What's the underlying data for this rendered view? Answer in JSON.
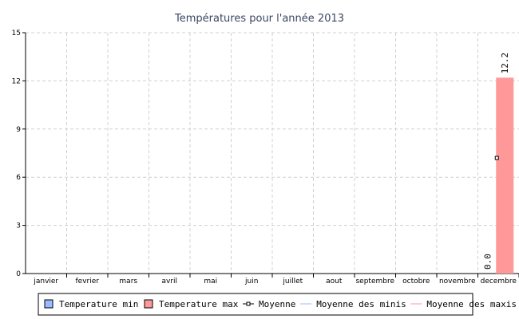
{
  "chart_data": {
    "type": "bar",
    "title": "Températures pour l'année 2013",
    "categories": [
      "janvier",
      "fevrier",
      "mars",
      "avril",
      "mai",
      "juin",
      "juillet",
      "aout",
      "septembre",
      "octobre",
      "novembre",
      "decembre"
    ],
    "ylim": [
      0,
      15
    ],
    "yticks": [
      "0",
      "3",
      "6",
      "9",
      "12",
      "15"
    ],
    "grid": true,
    "legend_position": "bottom",
    "series": [
      {
        "name": "Temperature min",
        "kind": "bar",
        "color": "#99bbff",
        "values": [
          null,
          null,
          null,
          null,
          null,
          null,
          null,
          null,
          null,
          null,
          null,
          0.0
        ],
        "labels": [
          "",
          "",
          "",
          "",
          "",
          "",
          "",
          "",
          "",
          "",
          "",
          "0.0"
        ]
      },
      {
        "name": "Temperature max",
        "kind": "bar",
        "color": "#ff9999",
        "values": [
          null,
          null,
          null,
          null,
          null,
          null,
          null,
          null,
          null,
          null,
          null,
          12.2
        ],
        "labels": [
          "",
          "",
          "",
          "",
          "",
          "",
          "",
          "",
          "",
          "",
          "",
          "12.2"
        ]
      },
      {
        "name": "Moyenne",
        "kind": "point",
        "color": "#000000",
        "values": [
          null,
          null,
          null,
          null,
          null,
          null,
          null,
          null,
          null,
          null,
          null,
          7.2
        ]
      },
      {
        "name": "Moyenne des minis",
        "kind": "line",
        "color": "#99bbff"
      },
      {
        "name": "Moyenne des maxis",
        "kind": "line",
        "color": "#ff9999"
      }
    ]
  }
}
